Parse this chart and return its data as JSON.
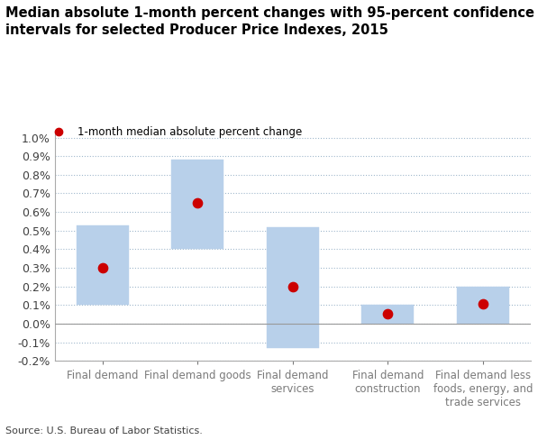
{
  "title_line1": "Median absolute 1-month percent changes with 95-percent confidence",
  "title_line2": "intervals for selected Producer Price Indexes, 2015",
  "categories": [
    "Final demand",
    "Final demand goods",
    "Final demand\nservices",
    "Final demand\nconstruction",
    "Final demand less\nfoods, energy, and\ntrade services"
  ],
  "medians": [
    0.003,
    0.0065,
    0.002,
    0.00055,
    0.00105
  ],
  "ci_low": [
    0.001,
    0.004,
    -0.0013,
    0.0,
    0.0
  ],
  "ci_high": [
    0.0053,
    0.0088,
    0.0052,
    0.001,
    0.002
  ],
  "bar_color": "#b8d0ea",
  "bar_edge_color": "#b8d0ea",
  "dot_color": "#cc0000",
  "dot_size": 55,
  "ylim": [
    -0.002,
    0.0103
  ],
  "yticks": [
    -0.002,
    -0.001,
    0.0,
    0.001,
    0.002,
    0.003,
    0.004,
    0.005,
    0.006,
    0.007,
    0.008,
    0.009,
    0.01
  ],
  "ytick_labels": [
    "-0.2%",
    "-0.1%",
    "0.0%",
    "0.1%",
    "0.2%",
    "0.3%",
    "0.4%",
    "0.5%",
    "0.6%",
    "0.7%",
    "0.8%",
    "0.9%",
    "1.0%"
  ],
  "legend_dot_color": "#cc0000",
  "legend_label": "1-month median absolute percent change",
  "source_text": "Source: U.S. Bureau of Labor Statistics.",
  "background_color": "#ffffff",
  "grid_color": "#a0b8cc",
  "x_label_color": "#7a7a7a",
  "zero_line_color": "#999999",
  "spine_color": "#aaaaaa",
  "bar_width": 0.55,
  "title_fontsize": 10.5,
  "tick_fontsize": 9,
  "xlabel_fontsize": 8.5,
  "legend_fontsize": 8.5,
  "source_fontsize": 8
}
